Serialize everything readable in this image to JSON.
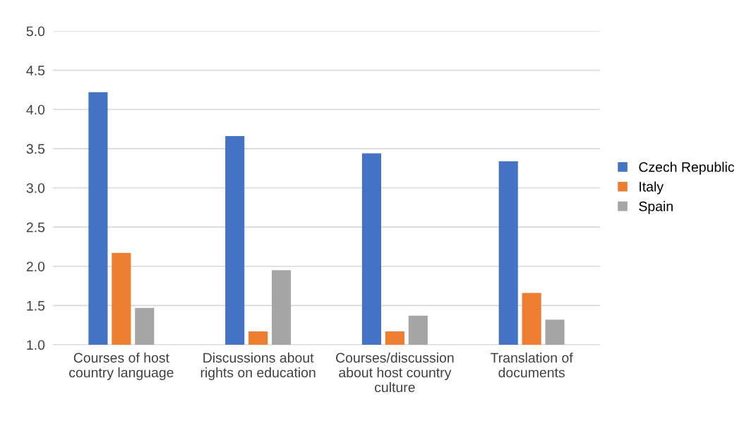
{
  "chart_data": {
    "type": "bar",
    "categories": [
      "Courses of host\ncountry language",
      "Discussions about\nrights on education",
      "Courses/discussion\nabout host country\nculture",
      "Translation of\ndocuments"
    ],
    "series": [
      {
        "name": "Czech Republic",
        "color": "#4472c4",
        "values": [
          4.22,
          3.66,
          3.44,
          3.34
        ]
      },
      {
        "name": "Italy",
        "color": "#ed7d31",
        "values": [
          2.17,
          1.17,
          1.17,
          1.66
        ]
      },
      {
        "name": "Spain",
        "color": "#a5a5a5",
        "values": [
          1.47,
          1.95,
          1.37,
          1.32
        ]
      }
    ],
    "ylim": [
      1.0,
      5.0
    ],
    "yticks": [
      {
        "value": 1.0,
        "label": "1.0"
      },
      {
        "value": 1.5,
        "label": "1.5"
      },
      {
        "value": 2.0,
        "label": "2.0"
      },
      {
        "value": 2.5,
        "label": "2.5"
      },
      {
        "value": 3.0,
        "label": "3.0"
      },
      {
        "value": 3.5,
        "label": "3.5"
      },
      {
        "value": 4.0,
        "label": "4.0"
      },
      {
        "value": 4.5,
        "label": "4.5"
      },
      {
        "value": 5.0,
        "label": "5.0"
      }
    ],
    "grid": "y",
    "legend": "right"
  }
}
